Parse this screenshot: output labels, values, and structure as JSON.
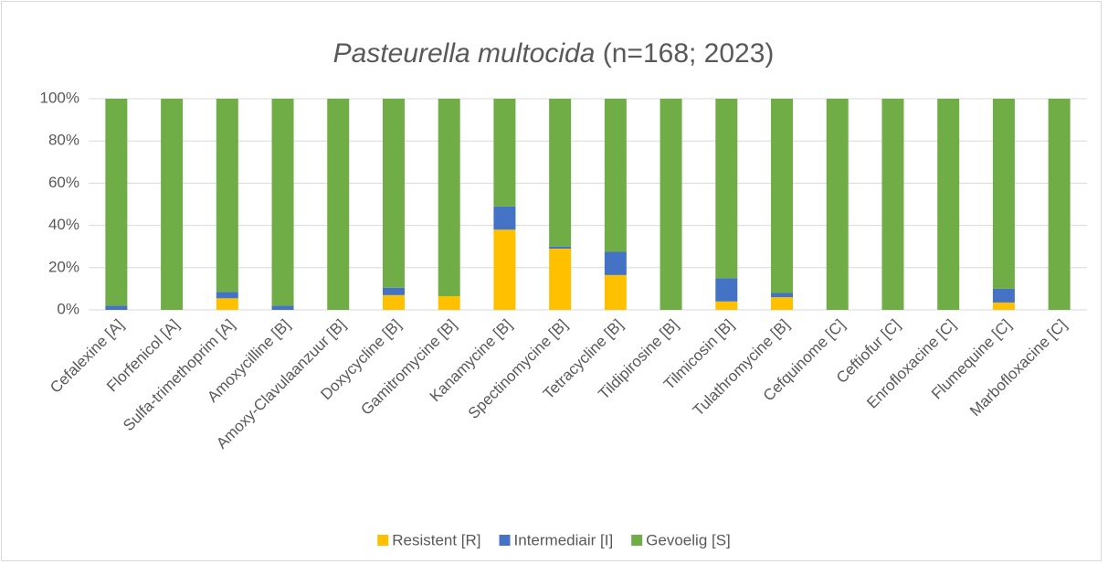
{
  "chart_data": {
    "type": "stacked_bar",
    "title_italic": "Pasteurella multocida",
    "title": "(n=168; 2023)",
    "categories": [
      "Cefalexine [A]",
      "Florfenicol [A]",
      "Sulfa-trimethoprim [A]",
      "Amoxycilline  [B]",
      "Amoxy-Clavulaanzuur [B]",
      "Doxycycline [B]",
      "Gamitromycine [B]",
      "Kanamycine [B]",
      "Spectinomycine [B]",
      "Tetracycline [B]",
      "Tildipirosine [B]",
      "Tilmicosin [B]",
      "Tulathromycine [B]",
      "Cefquinome [C]",
      "Ceftiofur [C]",
      "Enrofloxacine [C]",
      "Flumequine [C]",
      "Marbofloxacine [C]"
    ],
    "series": [
      {
        "name": "Resistent [R]",
        "color": "#ffc000",
        "values": [
          0,
          0,
          5.5,
          0,
          0,
          7,
          6.5,
          38,
          29,
          16.5,
          0,
          4,
          6,
          0,
          0,
          0,
          3.5,
          0
        ]
      },
      {
        "name": "Intermediair [I]",
        "color": "#4472c4",
        "values": [
          2,
          0,
          3,
          2,
          0,
          3.5,
          0,
          11,
          1,
          11,
          0,
          11,
          2,
          0,
          0,
          0,
          6.5,
          0
        ]
      },
      {
        "name": "Gevoelig [S]",
        "color": "#70ad47",
        "values": [
          98,
          100,
          91.5,
          98,
          100,
          89.5,
          93.5,
          51,
          70,
          72.5,
          100,
          85,
          92,
          100,
          100,
          100,
          90,
          100
        ]
      }
    ],
    "ylim": [
      0,
      100
    ],
    "yticks": [
      {
        "value": 0,
        "label": "0%"
      },
      {
        "value": 20,
        "label": "20%"
      },
      {
        "value": 40,
        "label": "40%"
      },
      {
        "value": 60,
        "label": "60%"
      },
      {
        "value": 80,
        "label": "80%"
      },
      {
        "value": 100,
        "label": "100%"
      }
    ],
    "grid": true,
    "legend": "bottom"
  }
}
